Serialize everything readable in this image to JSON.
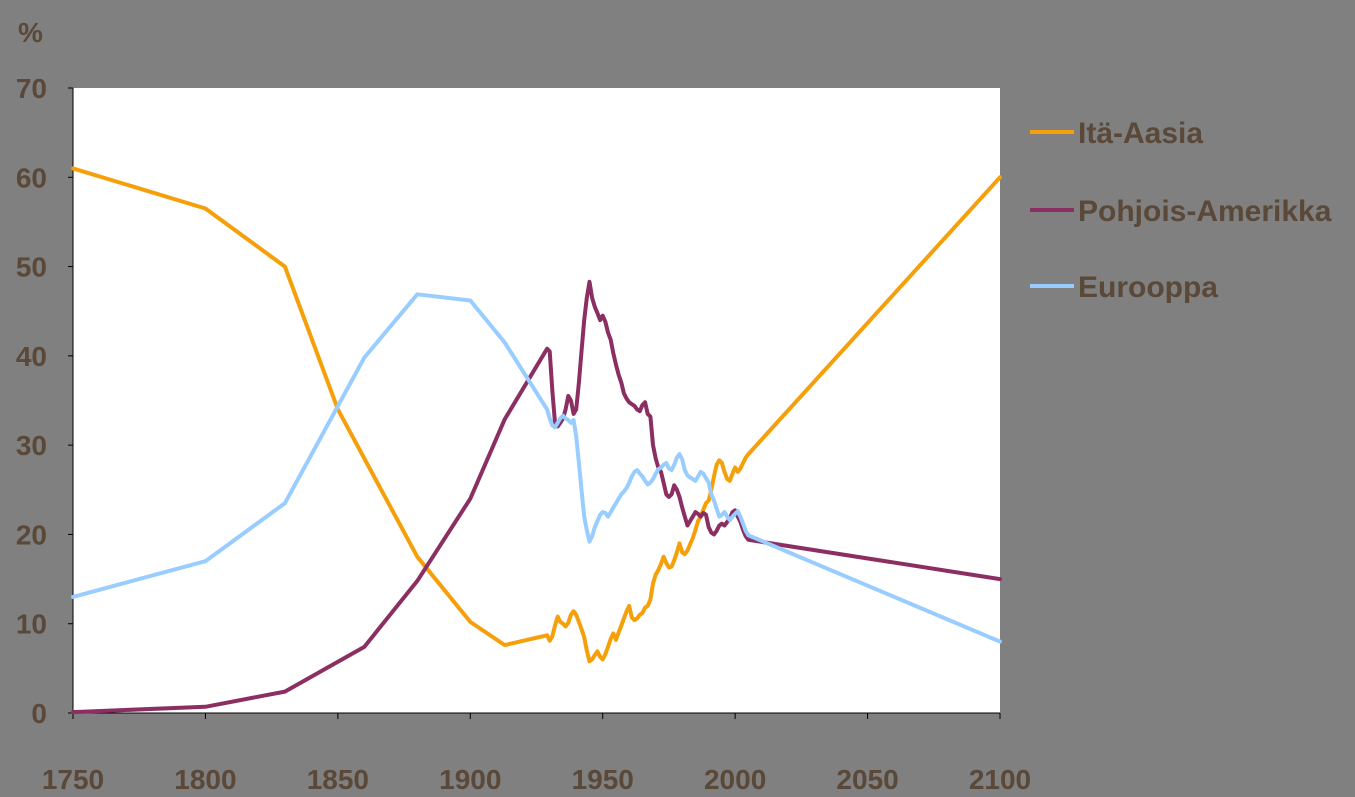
{
  "chart_data": {
    "type": "line",
    "ylabel": "%",
    "xlim": [
      1750,
      2100
    ],
    "ylim": [
      0,
      70
    ],
    "x_ticks": [
      "1750",
      "1800",
      "1850",
      "1900",
      "1950",
      "2000",
      "2050",
      "2100"
    ],
    "y_ticks": [
      "0",
      "10",
      "20",
      "30",
      "40",
      "50",
      "60",
      "70"
    ],
    "grid": false,
    "legend_position": "right",
    "plot_background": "#ffffff",
    "page_background": "#808080",
    "text_color": "#5a4838",
    "series": [
      {
        "name": "Itä-Aasia",
        "color": "#f5a00a",
        "points": [
          [
            1750,
            61
          ],
          [
            1800,
            56.5
          ],
          [
            1830,
            50
          ],
          [
            1850,
            34
          ],
          [
            1880,
            17.5
          ],
          [
            1900,
            10.2
          ],
          [
            1913,
            7.6
          ],
          [
            1929,
            8.7
          ],
          [
            1930,
            8.1
          ],
          [
            1931,
            8.6
          ],
          [
            1932,
            9.8
          ],
          [
            1933,
            10.8
          ],
          [
            1934,
            10.2
          ],
          [
            1935,
            10.0
          ],
          [
            1936,
            9.7
          ],
          [
            1937,
            10.1
          ],
          [
            1938,
            11.0
          ],
          [
            1939,
            11.4
          ],
          [
            1940,
            11.0
          ],
          [
            1941,
            10.2
          ],
          [
            1942,
            9.4
          ],
          [
            1943,
            8.5
          ],
          [
            1944,
            7.0
          ],
          [
            1945,
            5.8
          ],
          [
            1946,
            6.0
          ],
          [
            1947,
            6.5
          ],
          [
            1948,
            6.9
          ],
          [
            1949,
            6.3
          ],
          [
            1950,
            6.0
          ],
          [
            1951,
            6.6
          ],
          [
            1952,
            7.4
          ],
          [
            1953,
            8.3
          ],
          [
            1954,
            8.9
          ],
          [
            1955,
            8.2
          ],
          [
            1956,
            9.0
          ],
          [
            1957,
            9.8
          ],
          [
            1958,
            10.6
          ],
          [
            1959,
            11.4
          ],
          [
            1960,
            12.0
          ],
          [
            1961,
            10.7
          ],
          [
            1962,
            10.4
          ],
          [
            1963,
            10.6
          ],
          [
            1964,
            11.0
          ],
          [
            1965,
            11.2
          ],
          [
            1966,
            11.8
          ],
          [
            1967,
            12.0
          ],
          [
            1968,
            12.7
          ],
          [
            1969,
            14.5
          ],
          [
            1970,
            15.5
          ],
          [
            1971,
            16.0
          ],
          [
            1972,
            16.7
          ],
          [
            1973,
            17.5
          ],
          [
            1974,
            16.8
          ],
          [
            1975,
            16.3
          ],
          [
            1976,
            16.4
          ],
          [
            1977,
            17.1
          ],
          [
            1978,
            18.0
          ],
          [
            1979,
            19.0
          ],
          [
            1980,
            18.0
          ],
          [
            1981,
            17.8
          ],
          [
            1982,
            18.2
          ],
          [
            1983,
            18.9
          ],
          [
            1984,
            19.6
          ],
          [
            1985,
            20.5
          ],
          [
            1986,
            21.5
          ],
          [
            1987,
            22.0
          ],
          [
            1988,
            22.8
          ],
          [
            1989,
            23.5
          ],
          [
            1990,
            23.8
          ],
          [
            1991,
            25.0
          ],
          [
            1992,
            26.5
          ],
          [
            1993,
            27.8
          ],
          [
            1994,
            28.3
          ],
          [
            1995,
            28.0
          ],
          [
            1996,
            27.0
          ],
          [
            1997,
            26.2
          ],
          [
            1998,
            26.0
          ],
          [
            1999,
            26.8
          ],
          [
            2000,
            27.5
          ],
          [
            2001,
            27.0
          ],
          [
            2002,
            27.4
          ],
          [
            2003,
            28.0
          ],
          [
            2004,
            28.6
          ],
          [
            2005,
            29.0
          ],
          [
            2100,
            60
          ]
        ]
      },
      {
        "name": "Pohjois-Amerikka",
        "color": "#8b2f63",
        "points": [
          [
            1750,
            0.1
          ],
          [
            1800,
            0.7
          ],
          [
            1830,
            2.4
          ],
          [
            1860,
            7.4
          ],
          [
            1880,
            14.8
          ],
          [
            1900,
            24.0
          ],
          [
            1913,
            32.9
          ],
          [
            1929,
            40.8
          ],
          [
            1930,
            40.5
          ],
          [
            1931,
            36.0
          ],
          [
            1932,
            32.5
          ],
          [
            1933,
            32.1
          ],
          [
            1934,
            32.5
          ],
          [
            1935,
            33.0
          ],
          [
            1936,
            34.0
          ],
          [
            1937,
            35.5
          ],
          [
            1938,
            35.0
          ],
          [
            1939,
            33.5
          ],
          [
            1940,
            34.0
          ],
          [
            1941,
            37.0
          ],
          [
            1942,
            40.5
          ],
          [
            1943,
            44.0
          ],
          [
            1944,
            46.5
          ],
          [
            1945,
            48.3
          ],
          [
            1946,
            46.5
          ],
          [
            1947,
            45.5
          ],
          [
            1948,
            44.8
          ],
          [
            1949,
            44.0
          ],
          [
            1950,
            44.5
          ],
          [
            1951,
            43.8
          ],
          [
            1952,
            42.6
          ],
          [
            1953,
            41.8
          ],
          [
            1954,
            40.3
          ],
          [
            1955,
            39.0
          ],
          [
            1956,
            37.9
          ],
          [
            1957,
            37.0
          ],
          [
            1958,
            35.8
          ],
          [
            1959,
            35.2
          ],
          [
            1960,
            34.8
          ],
          [
            1961,
            34.6
          ],
          [
            1962,
            34.4
          ],
          [
            1963,
            34.0
          ],
          [
            1964,
            33.8
          ],
          [
            1965,
            34.5
          ],
          [
            1966,
            34.8
          ],
          [
            1967,
            33.5
          ],
          [
            1968,
            33.2
          ],
          [
            1969,
            30.0
          ],
          [
            1970,
            28.5
          ],
          [
            1971,
            27.5
          ],
          [
            1972,
            27.0
          ],
          [
            1973,
            25.8
          ],
          [
            1974,
            24.5
          ],
          [
            1975,
            24.2
          ],
          [
            1976,
            24.5
          ],
          [
            1977,
            25.5
          ],
          [
            1978,
            25.0
          ],
          [
            1979,
            24.2
          ],
          [
            1980,
            23.0
          ],
          [
            1981,
            22.0
          ],
          [
            1982,
            21.0
          ],
          [
            1983,
            21.5
          ],
          [
            1984,
            22.0
          ],
          [
            1985,
            22.5
          ],
          [
            1986,
            22.3
          ],
          [
            1987,
            22.0
          ],
          [
            1988,
            22.4
          ],
          [
            1989,
            22.2
          ],
          [
            1990,
            20.8
          ],
          [
            1991,
            20.2
          ],
          [
            1992,
            20.0
          ],
          [
            1993,
            20.4
          ],
          [
            1994,
            21.0
          ],
          [
            1995,
            21.2
          ],
          [
            1996,
            21.0
          ],
          [
            1997,
            21.4
          ],
          [
            1998,
            21.8
          ],
          [
            1999,
            22.5
          ],
          [
            2000,
            22.7
          ],
          [
            2001,
            22.0
          ],
          [
            2002,
            21.4
          ],
          [
            2003,
            20.5
          ],
          [
            2004,
            19.8
          ],
          [
            2005,
            19.4
          ],
          [
            2100,
            15
          ]
        ]
      },
      {
        "name": "Eurooppa",
        "color": "#99ccff",
        "points": [
          [
            1750,
            13
          ],
          [
            1800,
            17
          ],
          [
            1830,
            23.5
          ],
          [
            1860,
            39.8
          ],
          [
            1880,
            46.9
          ],
          [
            1900,
            46.2
          ],
          [
            1913,
            41.5
          ],
          [
            1929,
            34.0
          ],
          [
            1930,
            33.0
          ],
          [
            1931,
            32.2
          ],
          [
            1932,
            32.0
          ],
          [
            1933,
            32.5
          ],
          [
            1934,
            33.0
          ],
          [
            1935,
            33.3
          ],
          [
            1936,
            33.0
          ],
          [
            1937,
            32.8
          ],
          [
            1938,
            32.5
          ],
          [
            1939,
            32.8
          ],
          [
            1940,
            31.0
          ],
          [
            1941,
            28.0
          ],
          [
            1942,
            25.0
          ],
          [
            1943,
            22.0
          ],
          [
            1944,
            20.5
          ],
          [
            1945,
            19.2
          ],
          [
            1946,
            19.8
          ],
          [
            1947,
            20.8
          ],
          [
            1948,
            21.5
          ],
          [
            1949,
            22.2
          ],
          [
            1950,
            22.5
          ],
          [
            1951,
            22.4
          ],
          [
            1952,
            22.0
          ],
          [
            1953,
            22.5
          ],
          [
            1954,
            23.0
          ],
          [
            1955,
            23.5
          ],
          [
            1956,
            24.0
          ],
          [
            1957,
            24.5
          ],
          [
            1958,
            24.8
          ],
          [
            1959,
            25.2
          ],
          [
            1960,
            25.8
          ],
          [
            1961,
            26.5
          ],
          [
            1962,
            27.0
          ],
          [
            1963,
            27.2
          ],
          [
            1964,
            26.8
          ],
          [
            1965,
            26.5
          ],
          [
            1966,
            26.0
          ],
          [
            1967,
            25.6
          ],
          [
            1968,
            25.8
          ],
          [
            1969,
            26.2
          ],
          [
            1970,
            26.8
          ],
          [
            1971,
            27.3
          ],
          [
            1972,
            27.5
          ],
          [
            1973,
            27.8
          ],
          [
            1974,
            28.0
          ],
          [
            1975,
            27.4
          ],
          [
            1976,
            27.2
          ],
          [
            1977,
            27.8
          ],
          [
            1978,
            28.6
          ],
          [
            1979,
            29.0
          ],
          [
            1980,
            28.4
          ],
          [
            1981,
            27.2
          ],
          [
            1982,
            26.6
          ],
          [
            1983,
            26.4
          ],
          [
            1984,
            26.2
          ],
          [
            1985,
            26.0
          ],
          [
            1986,
            26.5
          ],
          [
            1987,
            27.0
          ],
          [
            1988,
            26.8
          ],
          [
            1989,
            26.3
          ],
          [
            1990,
            25.8
          ],
          [
            1991,
            24.5
          ],
          [
            1992,
            23.8
          ],
          [
            1993,
            22.9
          ],
          [
            1994,
            22.0
          ],
          [
            1995,
            22.2
          ],
          [
            1996,
            22.5
          ],
          [
            1997,
            22.0
          ],
          [
            1998,
            21.6
          ],
          [
            1999,
            22.0
          ],
          [
            2000,
            22.3
          ],
          [
            2001,
            22.6
          ],
          [
            2002,
            22.0
          ],
          [
            2003,
            21.2
          ],
          [
            2004,
            20.4
          ],
          [
            2005,
            19.9
          ],
          [
            2100,
            8
          ]
        ]
      }
    ]
  }
}
